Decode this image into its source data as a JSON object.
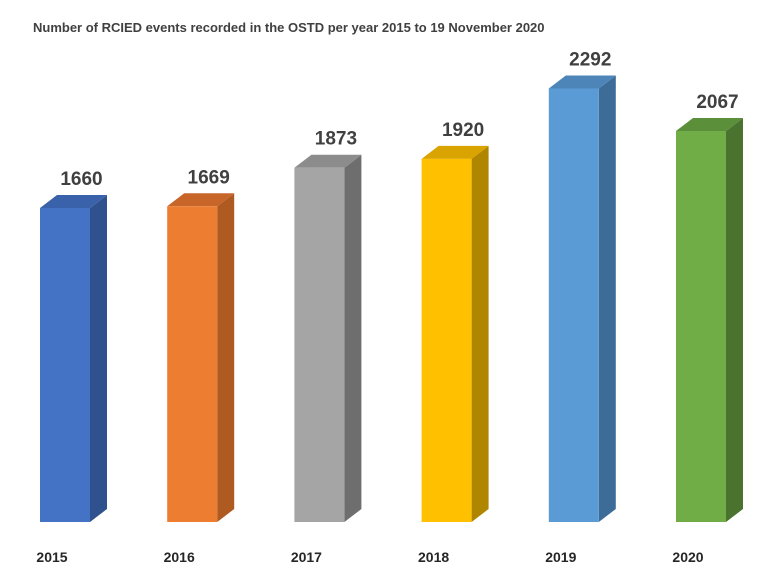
{
  "chart_data": {
    "type": "bar",
    "style": "3d-column",
    "title": "Number of RCIED events recorded in the OSTD per year 2015 to 19 November 2020",
    "categories": [
      "2015",
      "2016",
      "2017",
      "2018",
      "2019",
      "2020"
    ],
    "values": [
      1660,
      1669,
      1873,
      1920,
      2292,
      2067
    ],
    "colors": [
      "#4472C4",
      "#ED7D31",
      "#A5A5A5",
      "#FFC000",
      "#5B9BD5",
      "#70AD47"
    ],
    "side_colors": [
      "#2F528F",
      "#AE5A21",
      "#6E6E6E",
      "#B08500",
      "#3E6C98",
      "#4A7330"
    ],
    "top_colors": [
      "#3A62AA",
      "#C8662A",
      "#8C8C8C",
      "#D9A300",
      "#4D85B8",
      "#5B8F3A"
    ],
    "xlabel": "",
    "ylabel": "",
    "ylim": [
      0,
      2300
    ],
    "grid": false,
    "legend": "none",
    "data_labels": true
  }
}
